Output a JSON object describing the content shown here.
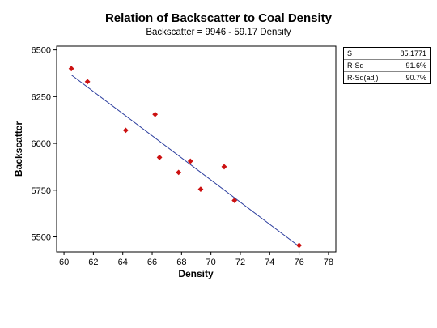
{
  "chart_data": {
    "type": "scatter",
    "title": "Relation of Backscatter to Coal Density",
    "subtitle": "Backscatter = 9946 - 59.17 Density",
    "xlabel": "Density",
    "ylabel": "Backscatter",
    "xlim": [
      59.5,
      78.5
    ],
    "ylim": [
      5420,
      6520
    ],
    "xticks": [
      60,
      62,
      64,
      66,
      68,
      70,
      72,
      74,
      76,
      78
    ],
    "yticks": [
      5500,
      5750,
      6000,
      6250,
      6500
    ],
    "points": [
      {
        "x": 60.5,
        "y": 6400
      },
      {
        "x": 61.6,
        "y": 6330
      },
      {
        "x": 64.2,
        "y": 6070
      },
      {
        "x": 66.2,
        "y": 6155
      },
      {
        "x": 66.5,
        "y": 5925
      },
      {
        "x": 67.8,
        "y": 5845
      },
      {
        "x": 68.6,
        "y": 5905
      },
      {
        "x": 69.3,
        "y": 5755
      },
      {
        "x": 70.9,
        "y": 5875
      },
      {
        "x": 71.6,
        "y": 5695
      },
      {
        "x": 76.0,
        "y": 5455
      }
    ],
    "fit": {
      "intercept": 9946,
      "slope": -59.17,
      "x_range": [
        60.5,
        76.0
      ]
    },
    "marker_color": "#cc1111",
    "line_color": "#2b3d9e",
    "grid": false
  },
  "stats": [
    {
      "label": "S",
      "value": "85.1771"
    },
    {
      "label": "R-Sq",
      "value": "91.6%"
    },
    {
      "label": "R-Sq(adj)",
      "value": "90.7%"
    }
  ]
}
